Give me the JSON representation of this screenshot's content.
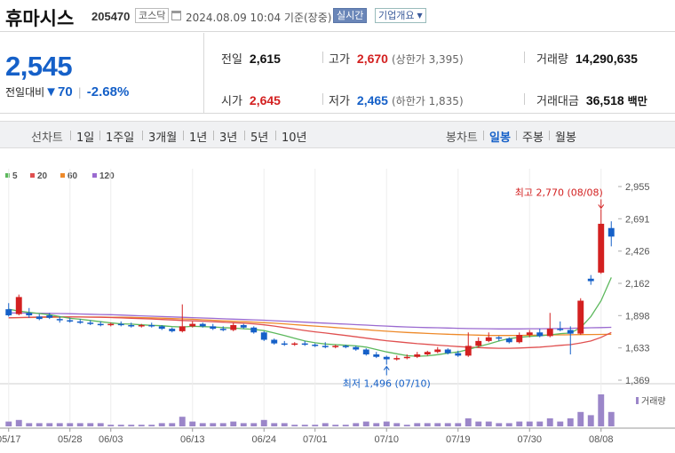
{
  "header": {
    "name": "휴마시스",
    "code": "205470",
    "market": "코스닥",
    "datetime": "2024.08.09 10:04 기준(장중)",
    "live_badge": "실시간",
    "info_button": "기업개요"
  },
  "summary": {
    "price": "2,545",
    "change_label": "전일대비",
    "change_value": "70",
    "change_pct": "-2.68%",
    "prev_close_label": "전일",
    "prev_close": "2,615",
    "open_label": "시가",
    "open": "2,645",
    "high_label": "고가",
    "high": "2,670",
    "upper_limit": "(상한가 3,395)",
    "low_label": "저가",
    "low": "2,465",
    "lower_limit": "(하한가 1,835)",
    "volume_label": "거래량",
    "volume": "14,290,635",
    "turnover_label": "거래대금",
    "turnover": "36,518",
    "turnover_unit": "백만"
  },
  "periods": {
    "line_label": "선차트",
    "line_items": [
      "1일",
      "1주일",
      "3개월",
      "1년",
      "3년",
      "5년",
      "10년"
    ],
    "candle_label": "봉차트",
    "candle_items": [
      "일봉",
      "주봉",
      "월봉"
    ],
    "selected": "일봉"
  },
  "colors": {
    "up": "#d32020",
    "down": "#1560c8",
    "ma5": "#5cb85c",
    "ma20": "#e05050",
    "ma60": "#ee8a2a",
    "ma120": "#9a6ad0",
    "volume": "#9b86c9"
  },
  "chart_data": {
    "type": "candlestick",
    "legend": [
      "5",
      "20",
      "60",
      "120"
    ],
    "y_ticks": [
      2955,
      2691,
      2426,
      2162,
      1898,
      1633,
      1369
    ],
    "ylim": [
      1369,
      2955
    ],
    "x_ticks": [
      {
        "label": "05/17",
        "i": 0
      },
      {
        "label": "05/28",
        "i": 6
      },
      {
        "label": "06/03",
        "i": 10
      },
      {
        "label": "06/13",
        "i": 18
      },
      {
        "label": "06/24",
        "i": 25
      },
      {
        "label": "07/01",
        "i": 30
      },
      {
        "label": "07/10",
        "i": 37
      },
      {
        "label": "07/19",
        "i": 44
      },
      {
        "label": "07/30",
        "i": 51
      },
      {
        "label": "08/08",
        "i": 58
      }
    ],
    "high_annotation": {
      "text": "최고 2,770 (08/08)",
      "i": 58,
      "value": 2770
    },
    "low_annotation": {
      "text": "최저 1,496 (07/10)",
      "i": 37,
      "value": 1496
    },
    "volume_label": "거래량",
    "candles": [
      [
        1950,
        1900,
        2000,
        1890,
        3
      ],
      [
        1910,
        2050,
        2070,
        1900,
        4
      ],
      [
        1920,
        1900,
        1960,
        1880,
        2
      ],
      [
        1890,
        1870,
        1910,
        1860,
        2
      ],
      [
        1900,
        1880,
        1920,
        1870,
        2
      ],
      [
        1870,
        1860,
        1890,
        1840,
        2
      ],
      [
        1860,
        1850,
        1880,
        1840,
        2
      ],
      [
        1850,
        1840,
        1870,
        1830,
        2
      ],
      [
        1840,
        1830,
        1860,
        1820,
        2
      ],
      [
        1830,
        1820,
        1850,
        1810,
        2
      ],
      [
        1820,
        1830,
        1840,
        1810,
        1
      ],
      [
        1830,
        1820,
        1850,
        1810,
        1
      ],
      [
        1820,
        1810,
        1840,
        1800,
        1
      ],
      [
        1810,
        1820,
        1830,
        1800,
        1
      ],
      [
        1820,
        1810,
        1840,
        1800,
        1
      ],
      [
        1810,
        1790,
        1820,
        1780,
        2
      ],
      [
        1790,
        1770,
        1800,
        1760,
        2
      ],
      [
        1770,
        1810,
        1990,
        1760,
        6
      ],
      [
        1810,
        1830,
        1850,
        1800,
        3
      ],
      [
        1830,
        1810,
        1840,
        1800,
        2
      ],
      [
        1810,
        1790,
        1830,
        1780,
        2
      ],
      [
        1790,
        1780,
        1810,
        1770,
        2
      ],
      [
        1780,
        1820,
        1840,
        1770,
        3
      ],
      [
        1820,
        1800,
        1830,
        1790,
        2
      ],
      [
        1800,
        1760,
        1810,
        1750,
        2
      ],
      [
        1760,
        1700,
        1770,
        1690,
        4
      ],
      [
        1700,
        1670,
        1710,
        1660,
        2
      ],
      [
        1670,
        1660,
        1690,
        1650,
        2
      ],
      [
        1660,
        1670,
        1680,
        1650,
        1
      ],
      [
        1670,
        1660,
        1690,
        1650,
        1
      ],
      [
        1660,
        1650,
        1670,
        1640,
        1
      ],
      [
        1650,
        1640,
        1680,
        1630,
        2
      ],
      [
        1640,
        1650,
        1660,
        1630,
        1
      ],
      [
        1650,
        1640,
        1660,
        1630,
        1
      ],
      [
        1640,
        1620,
        1650,
        1610,
        2
      ],
      [
        1620,
        1580,
        1630,
        1570,
        3
      ],
      [
        1580,
        1560,
        1600,
        1550,
        2
      ],
      [
        1560,
        1540,
        1570,
        1496,
        3
      ],
      [
        1540,
        1550,
        1570,
        1530,
        2
      ],
      [
        1550,
        1560,
        1580,
        1540,
        1
      ],
      [
        1560,
        1580,
        1600,
        1550,
        2
      ],
      [
        1580,
        1600,
        1610,
        1570,
        2
      ],
      [
        1600,
        1620,
        1640,
        1590,
        2
      ],
      [
        1620,
        1590,
        1630,
        1580,
        2
      ],
      [
        1590,
        1570,
        1610,
        1560,
        2
      ],
      [
        1570,
        1650,
        1760,
        1560,
        5
      ],
      [
        1650,
        1690,
        1720,
        1640,
        3
      ],
      [
        1690,
        1720,
        1760,
        1680,
        3
      ],
      [
        1720,
        1710,
        1730,
        1690,
        2
      ],
      [
        1710,
        1680,
        1720,
        1670,
        2
      ],
      [
        1680,
        1740,
        1760,
        1670,
        3
      ],
      [
        1740,
        1760,
        1780,
        1720,
        3
      ],
      [
        1760,
        1730,
        1790,
        1720,
        3
      ],
      [
        1730,
        1790,
        1920,
        1720,
        5
      ],
      [
        1790,
        1780,
        1850,
        1770,
        3
      ],
      [
        1780,
        1750,
        1810,
        1580,
        5
      ],
      [
        1750,
        2020,
        2040,
        1740,
        9
      ],
      [
        2200,
        2180,
        2230,
        2150,
        7
      ],
      [
        2250,
        2650,
        2770,
        2240,
        20
      ],
      [
        2615,
        2545,
        2670,
        2465,
        9
      ]
    ],
    "ma5": [
      1950,
      1935,
      1925,
      1915,
      1905,
      1890,
      1875,
      1868,
      1858,
      1848,
      1838,
      1830,
      1828,
      1822,
      1818,
      1815,
      1808,
      1805,
      1810,
      1808,
      1805,
      1800,
      1795,
      1790,
      1785,
      1775,
      1755,
      1735,
      1712,
      1690,
      1675,
      1665,
      1660,
      1655,
      1650,
      1640,
      1620,
      1600,
      1585,
      1570,
      1565,
      1568,
      1578,
      1590,
      1600,
      1620,
      1645,
      1665,
      1690,
      1710,
      1720,
      1728,
      1732,
      1740,
      1750,
      1755,
      1800,
      1890,
      2020,
      2210
    ],
    "ma20": [
      1880,
      1882,
      1884,
      1886,
      1888,
      1888,
      1887,
      1886,
      1885,
      1884,
      1882,
      1879,
      1876,
      1873,
      1870,
      1866,
      1862,
      1858,
      1855,
      1852,
      1848,
      1844,
      1840,
      1835,
      1830,
      1822,
      1812,
      1800,
      1788,
      1776,
      1765,
      1755,
      1745,
      1735,
      1724,
      1713,
      1702,
      1692,
      1684,
      1676,
      1668,
      1662,
      1656,
      1650,
      1644,
      1640,
      1636,
      1632,
      1630,
      1630,
      1632,
      1636,
      1640,
      1646,
      1654,
      1660,
      1674,
      1690,
      1720,
      1760
    ],
    "ma60": [
      1880,
      1881,
      1882,
      1883,
      1884,
      1885,
      1886,
      1886,
      1886,
      1886,
      1885,
      1884,
      1883,
      1881,
      1879,
      1877,
      1874,
      1871,
      1868,
      1864,
      1860,
      1856,
      1852,
      1848,
      1844,
      1840,
      1835,
      1830,
      1824,
      1818,
      1812,
      1806,
      1800,
      1794,
      1788,
      1782,
      1776,
      1770,
      1765,
      1760,
      1756,
      1752,
      1748,
      1745,
      1742,
      1740,
      1738,
      1736,
      1735,
      1735,
      1736,
      1737,
      1738,
      1739,
      1740,
      1741,
      1742,
      1743,
      1744,
      1745
    ],
    "ma120": [
      1920,
      1919,
      1918,
      1917,
      1916,
      1915,
      1913,
      1911,
      1909,
      1907,
      1905,
      1902,
      1899,
      1896,
      1893,
      1890,
      1887,
      1884,
      1881,
      1878,
      1875,
      1872,
      1869,
      1866,
      1863,
      1860,
      1856,
      1852,
      1848,
      1844,
      1840,
      1836,
      1832,
      1828,
      1824,
      1820,
      1816,
      1812,
      1808,
      1805,
      1802,
      1800,
      1798,
      1796,
      1794,
      1792,
      1791,
      1790,
      1789,
      1789,
      1789,
      1790,
      1790,
      1791,
      1792,
      1794,
      1796,
      1798,
      1800,
      1802
    ]
  }
}
